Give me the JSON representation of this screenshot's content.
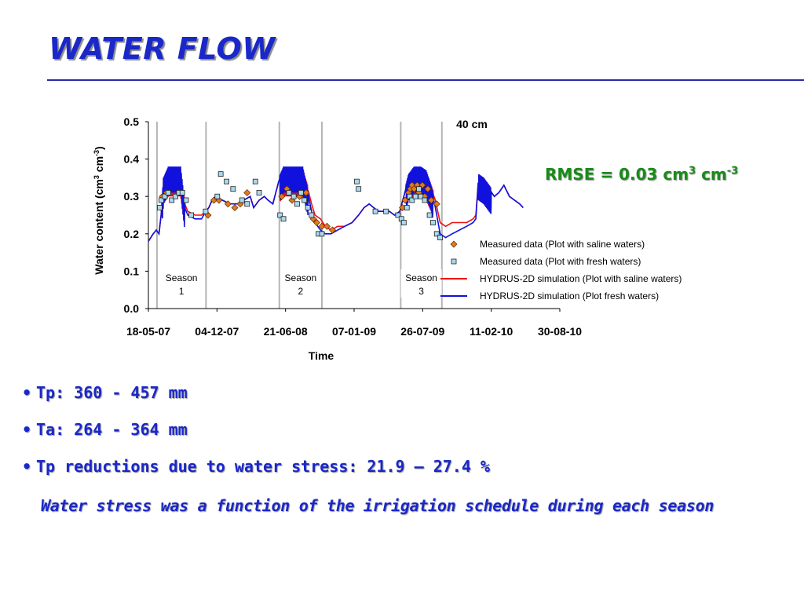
{
  "slide": {
    "title": "WATER FLOW",
    "rmse_prefix": "RMSE = 0.03 cm",
    "rmse_exp1": "3",
    "rmse_mid": " cm",
    "rmse_exp2": "-3",
    "bullets": [
      "Tp: 360 - 457 mm",
      "Ta: 264 - 364 mm",
      "Tp reductions due to water stress: 21.9 – 27.4 %"
    ],
    "note": "Water stress was a function of the irrigation schedule during each season"
  },
  "chart_data": {
    "type": "line",
    "annotation": "40 cm",
    "xlabel": "Time",
    "ylabel_main": "Water content (cm",
    "ylabel_exp1": "3",
    "ylabel_mid": " cm",
    "ylabel_exp2": "-3",
    "ylabel_end": ")",
    "x_ticks": [
      "18-05-07",
      "04-12-07",
      "21-06-08",
      "07-01-09",
      "26-07-09",
      "11-02-10",
      "30-08-10"
    ],
    "y_ticks": [
      "0.0",
      "0.1",
      "0.2",
      "0.3",
      "0.4",
      "0.5"
    ],
    "ylim": [
      0,
      0.5
    ],
    "xlim": [
      "2007-05-18",
      "2010-08-30"
    ],
    "season_labels": [
      {
        "line1": "Season",
        "line2": "1"
      },
      {
        "line1": "Season",
        "line2": "2"
      },
      {
        "line1": "Season",
        "line2": "3"
      }
    ],
    "season_boundaries": [
      "2007-06-12",
      "2007-11-02",
      "2008-06-03",
      "2008-10-05",
      "2009-05-23",
      "2009-09-20"
    ],
    "legend_position": "right, middle",
    "colors": {
      "saline_sim": "#ee1111",
      "fresh_sim": "#1111dd",
      "saline_marker": "#e07a20",
      "fresh_marker": "#a9d9ef"
    },
    "series": [
      {
        "name": "HYDRUS-2D simulation (Plot with saline waters)",
        "kind": "line",
        "points": [
          [
            "2007-05-18",
            0.18
          ],
          [
            "2007-06-01",
            0.2
          ],
          [
            "2007-06-10",
            0.21
          ],
          [
            "2007-06-18",
            0.2
          ],
          [
            "2007-06-24",
            0.25
          ],
          [
            "2007-07-01",
            0.34
          ],
          [
            "2007-07-15",
            0.36
          ],
          [
            "2007-08-01",
            0.36
          ],
          [
            "2007-08-20",
            0.36
          ],
          [
            "2007-09-01",
            0.28
          ],
          [
            "2007-09-10",
            0.26
          ],
          [
            "2007-10-01",
            0.25
          ],
          [
            "2007-10-20",
            0.25
          ],
          [
            "2007-11-01",
            0.26
          ],
          [
            "2007-11-10",
            0.27
          ],
          [
            "2007-11-20",
            0.29
          ],
          [
            "2007-12-01",
            0.3
          ],
          [
            "2007-12-20",
            0.29
          ],
          [
            "2008-01-10",
            0.28
          ],
          [
            "2008-02-01",
            0.28
          ],
          [
            "2008-02-20",
            0.29
          ],
          [
            "2008-03-10",
            0.3
          ],
          [
            "2008-03-20",
            0.27
          ],
          [
            "2008-04-05",
            0.29
          ],
          [
            "2008-04-20",
            0.3
          ],
          [
            "2008-05-01",
            0.29
          ],
          [
            "2008-05-15",
            0.28
          ],
          [
            "2008-06-01",
            0.34
          ],
          [
            "2008-06-15",
            0.36
          ],
          [
            "2008-07-01",
            0.36
          ],
          [
            "2008-07-20",
            0.36
          ],
          [
            "2008-08-10",
            0.36
          ],
          [
            "2008-08-25",
            0.32
          ],
          [
            "2008-09-05",
            0.28
          ],
          [
            "2008-09-15",
            0.25
          ],
          [
            "2008-10-01",
            0.24
          ],
          [
            "2008-10-15",
            0.22
          ],
          [
            "2008-11-01",
            0.21
          ],
          [
            "2008-11-20",
            0.22
          ],
          [
            "2008-12-10",
            0.22
          ],
          [
            "2009-01-01",
            0.23
          ],
          [
            "2009-01-20",
            0.25
          ],
          [
            "2009-02-05",
            0.27
          ],
          [
            "2009-02-20",
            0.28
          ],
          [
            "2009-03-05",
            0.27
          ],
          [
            "2009-03-20",
            0.26
          ],
          [
            "2009-04-05",
            0.26
          ],
          [
            "2009-04-20",
            0.26
          ],
          [
            "2009-05-05",
            0.25
          ],
          [
            "2009-05-20",
            0.26
          ],
          [
            "2009-06-01",
            0.3
          ],
          [
            "2009-06-15",
            0.35
          ],
          [
            "2009-07-01",
            0.36
          ],
          [
            "2009-07-20",
            0.36
          ],
          [
            "2009-08-05",
            0.35
          ],
          [
            "2009-08-20",
            0.32
          ],
          [
            "2009-09-01",
            0.29
          ],
          [
            "2009-09-15",
            0.23
          ],
          [
            "2009-10-01",
            0.22
          ],
          [
            "2009-10-20",
            0.23
          ],
          [
            "2009-11-10",
            0.23
          ],
          [
            "2009-12-01",
            0.23
          ],
          [
            "2009-12-20",
            0.24
          ],
          [
            "2009-12-28",
            0.25
          ],
          [
            "2010-01-05",
            0.35
          ],
          [
            "2010-01-20",
            0.34
          ],
          [
            "2010-02-05",
            0.32
          ],
          [
            "2010-02-20",
            0.3
          ],
          [
            "2010-03-05",
            0.31
          ],
          [
            "2010-03-20",
            0.33
          ],
          [
            "2010-04-05",
            0.3
          ],
          [
            "2010-04-20",
            0.29
          ],
          [
            "2010-05-05",
            0.28
          ],
          [
            "2010-05-15",
            0.27
          ]
        ]
      },
      {
        "name": "HYDRUS-2D simulation (Plot fresh waters)",
        "kind": "line",
        "points": [
          [
            "2007-05-18",
            0.18
          ],
          [
            "2007-06-01",
            0.2
          ],
          [
            "2007-06-10",
            0.21
          ],
          [
            "2007-06-18",
            0.2
          ],
          [
            "2007-06-24",
            0.25
          ],
          [
            "2007-07-01",
            0.34
          ],
          [
            "2007-07-15",
            0.37
          ],
          [
            "2007-08-01",
            0.37
          ],
          [
            "2007-08-20",
            0.37
          ],
          [
            "2007-09-01",
            0.27
          ],
          [
            "2007-09-10",
            0.25
          ],
          [
            "2007-10-01",
            0.24
          ],
          [
            "2007-10-20",
            0.24
          ],
          [
            "2007-11-01",
            0.26
          ],
          [
            "2007-11-10",
            0.27
          ],
          [
            "2007-11-20",
            0.29
          ],
          [
            "2007-12-01",
            0.3
          ],
          [
            "2007-12-20",
            0.29
          ],
          [
            "2008-01-10",
            0.28
          ],
          [
            "2008-02-01",
            0.28
          ],
          [
            "2008-02-20",
            0.29
          ],
          [
            "2008-03-10",
            0.3
          ],
          [
            "2008-03-20",
            0.27
          ],
          [
            "2008-04-05",
            0.29
          ],
          [
            "2008-04-20",
            0.3
          ],
          [
            "2008-05-01",
            0.29
          ],
          [
            "2008-05-15",
            0.28
          ],
          [
            "2008-06-01",
            0.34
          ],
          [
            "2008-06-15",
            0.37
          ],
          [
            "2008-07-01",
            0.37
          ],
          [
            "2008-07-20",
            0.37
          ],
          [
            "2008-08-10",
            0.37
          ],
          [
            "2008-08-25",
            0.31
          ],
          [
            "2008-09-05",
            0.26
          ],
          [
            "2008-09-15",
            0.23
          ],
          [
            "2008-10-01",
            0.21
          ],
          [
            "2008-10-15",
            0.2
          ],
          [
            "2008-11-01",
            0.2
          ],
          [
            "2008-11-20",
            0.21
          ],
          [
            "2008-12-10",
            0.22
          ],
          [
            "2009-01-01",
            0.23
          ],
          [
            "2009-01-20",
            0.25
          ],
          [
            "2009-02-05",
            0.27
          ],
          [
            "2009-02-20",
            0.28
          ],
          [
            "2009-03-05",
            0.27
          ],
          [
            "2009-03-20",
            0.26
          ],
          [
            "2009-04-05",
            0.26
          ],
          [
            "2009-04-20",
            0.26
          ],
          [
            "2009-05-05",
            0.25
          ],
          [
            "2009-05-20",
            0.26
          ],
          [
            "2009-06-01",
            0.3
          ],
          [
            "2009-06-15",
            0.35
          ],
          [
            "2009-07-01",
            0.37
          ],
          [
            "2009-07-20",
            0.37
          ],
          [
            "2009-08-05",
            0.36
          ],
          [
            "2009-08-20",
            0.32
          ],
          [
            "2009-09-01",
            0.27
          ],
          [
            "2009-09-15",
            0.2
          ],
          [
            "2009-10-01",
            0.19
          ],
          [
            "2009-10-20",
            0.2
          ],
          [
            "2009-11-10",
            0.21
          ],
          [
            "2009-12-01",
            0.22
          ],
          [
            "2009-12-20",
            0.23
          ],
          [
            "2009-12-28",
            0.24
          ],
          [
            "2010-01-05",
            0.35
          ],
          [
            "2010-01-20",
            0.34
          ],
          [
            "2010-02-05",
            0.32
          ],
          [
            "2010-02-20",
            0.3
          ],
          [
            "2010-03-05",
            0.31
          ],
          [
            "2010-03-20",
            0.33
          ],
          [
            "2010-04-05",
            0.3
          ],
          [
            "2010-04-20",
            0.29
          ],
          [
            "2010-05-05",
            0.28
          ],
          [
            "2010-05-15",
            0.27
          ]
        ]
      },
      {
        "name": "Measured data (Plot with saline waters)",
        "kind": "diamond",
        "points": [
          [
            "2007-06-28",
            0.3
          ],
          [
            "2007-07-10",
            0.31
          ],
          [
            "2007-11-08",
            0.25
          ],
          [
            "2007-11-25",
            0.29
          ],
          [
            "2007-12-10",
            0.29
          ],
          [
            "2008-01-05",
            0.28
          ],
          [
            "2008-01-25",
            0.27
          ],
          [
            "2008-02-10",
            0.28
          ],
          [
            "2008-03-01",
            0.31
          ],
          [
            "2008-06-10",
            0.3
          ],
          [
            "2008-06-25",
            0.32
          ],
          [
            "2008-07-10",
            0.29
          ],
          [
            "2008-08-01",
            0.3
          ],
          [
            "2008-08-20",
            0.31
          ],
          [
            "2008-09-10",
            0.24
          ],
          [
            "2008-09-20",
            0.23
          ],
          [
            "2008-10-05",
            0.22
          ],
          [
            "2008-10-20",
            0.22
          ],
          [
            "2008-11-05",
            0.21
          ],
          [
            "2009-05-28",
            0.27
          ],
          [
            "2009-06-05",
            0.29
          ],
          [
            "2009-06-15",
            0.31
          ],
          [
            "2009-06-20",
            0.32
          ],
          [
            "2009-06-25",
            0.33
          ],
          [
            "2009-07-01",
            0.32
          ],
          [
            "2009-07-10",
            0.33
          ],
          [
            "2009-07-15",
            0.31
          ],
          [
            "2009-07-25",
            0.33
          ],
          [
            "2009-08-01",
            0.3
          ],
          [
            "2009-08-10",
            0.32
          ],
          [
            "2009-08-20",
            0.29
          ],
          [
            "2009-09-05",
            0.28
          ]
        ]
      },
      {
        "name": "Measured data (Plot with fresh waters)",
        "kind": "square",
        "points": [
          [
            "2007-06-20",
            0.27
          ],
          [
            "2007-06-25",
            0.29
          ],
          [
            "2007-07-05",
            0.3
          ],
          [
            "2007-07-15",
            0.31
          ],
          [
            "2007-07-25",
            0.29
          ],
          [
            "2007-08-05",
            0.3
          ],
          [
            "2007-08-15",
            0.31
          ],
          [
            "2007-08-25",
            0.31
          ],
          [
            "2007-09-05",
            0.29
          ],
          [
            "2007-09-20",
            0.25
          ],
          [
            "2007-11-01",
            0.26
          ],
          [
            "2007-12-05",
            0.3
          ],
          [
            "2007-12-15",
            0.36
          ],
          [
            "2008-01-01",
            0.34
          ],
          [
            "2008-01-20",
            0.32
          ],
          [
            "2008-02-15",
            0.29
          ],
          [
            "2008-03-01",
            0.28
          ],
          [
            "2008-03-25",
            0.34
          ],
          [
            "2008-04-05",
            0.31
          ],
          [
            "2008-06-05",
            0.25
          ],
          [
            "2008-06-15",
            0.24
          ],
          [
            "2008-07-01",
            0.31
          ],
          [
            "2008-07-15",
            0.3
          ],
          [
            "2008-07-25",
            0.28
          ],
          [
            "2008-08-05",
            0.31
          ],
          [
            "2008-08-15",
            0.29
          ],
          [
            "2008-08-25",
            0.27
          ],
          [
            "2008-09-05",
            0.25
          ],
          [
            "2008-09-25",
            0.2
          ],
          [
            "2008-10-05",
            0.2
          ],
          [
            "2009-01-15",
            0.34
          ],
          [
            "2009-01-20",
            0.32
          ],
          [
            "2009-03-10",
            0.26
          ],
          [
            "2009-04-10",
            0.26
          ],
          [
            "2009-05-15",
            0.25
          ],
          [
            "2009-05-25",
            0.24
          ],
          [
            "2009-06-01",
            0.23
          ],
          [
            "2009-06-10",
            0.27
          ],
          [
            "2009-06-18",
            0.3
          ],
          [
            "2009-06-25",
            0.29
          ],
          [
            "2009-07-05",
            0.3
          ],
          [
            "2009-07-15",
            0.32
          ],
          [
            "2009-07-20",
            0.3
          ],
          [
            "2009-08-01",
            0.29
          ],
          [
            "2009-08-15",
            0.25
          ],
          [
            "2009-08-25",
            0.23
          ],
          [
            "2009-09-05",
            0.2
          ],
          [
            "2009-09-15",
            0.19
          ]
        ]
      }
    ],
    "legend": [
      {
        "label": "Measured data (Plot with saline waters)",
        "kind": "diamond"
      },
      {
        "label": "Measured data (Plot with fresh waters)",
        "kind": "square"
      },
      {
        "label": "HYDRUS-2D simulation (Plot with saline waters)",
        "kind": "line-red"
      },
      {
        "label": "HYDRUS-2D simulation (Plot fresh waters)",
        "kind": "line-blue"
      }
    ]
  }
}
